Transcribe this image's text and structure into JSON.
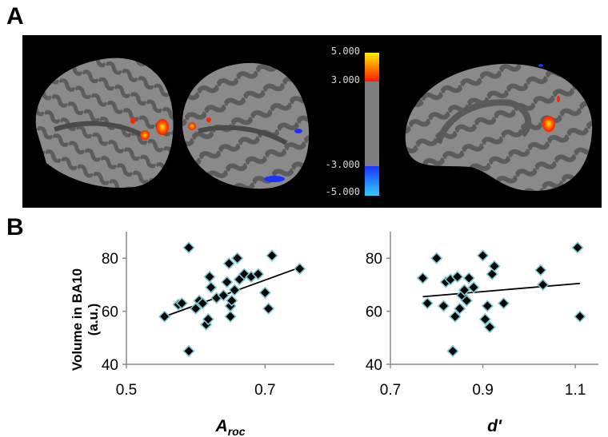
{
  "panel_a": {
    "label": "A",
    "colorbar": {
      "ticks": [
        "5.000",
        "3.000",
        "-3.000",
        "-5.000"
      ],
      "colors": {
        "positive_high": "#ffee00",
        "positive_low": "#ff1a00",
        "neutral": "#7f7f7f",
        "negative_low": "#1a33ff",
        "negative_high": "#33ccff"
      }
    },
    "background": "#000000"
  },
  "panel_b": {
    "label": "B",
    "ylabel_line1": "Volume in BA10",
    "ylabel_line2": "(a.u.)"
  },
  "chart_data": [
    {
      "type": "scatter",
      "xlabel_main": "A",
      "xlabel_sub": "roc",
      "ylabel": "Volume in BA10 (a.u.)",
      "xlim": [
        0.5,
        0.8
      ],
      "ylim": [
        40,
        90
      ],
      "xticks": [
        "0.5",
        "0.7"
      ],
      "yticks": [
        "40",
        "60",
        "80"
      ],
      "trendline": true,
      "trend_start": [
        0.555,
        58
      ],
      "trend_end": [
        0.75,
        76.5
      ],
      "points": [
        [
          0.555,
          58
        ],
        [
          0.575,
          62.5
        ],
        [
          0.58,
          63
        ],
        [
          0.59,
          84
        ],
        [
          0.59,
          45
        ],
        [
          0.6,
          61
        ],
        [
          0.605,
          64
        ],
        [
          0.61,
          63
        ],
        [
          0.615,
          55
        ],
        [
          0.618,
          57
        ],
        [
          0.62,
          73
        ],
        [
          0.622,
          69
        ],
        [
          0.63,
          65
        ],
        [
          0.64,
          66
        ],
        [
          0.645,
          71
        ],
        [
          0.648,
          78
        ],
        [
          0.65,
          58
        ],
        [
          0.65,
          62
        ],
        [
          0.652,
          64
        ],
        [
          0.656,
          68
        ],
        [
          0.66,
          80
        ],
        [
          0.663,
          72
        ],
        [
          0.67,
          74
        ],
        [
          0.68,
          73
        ],
        [
          0.69,
          74
        ],
        [
          0.7,
          67
        ],
        [
          0.705,
          61
        ],
        [
          0.71,
          81
        ],
        [
          0.75,
          76
        ]
      ],
      "marker_color": "#000000",
      "marker_edge": "#7ec8d0"
    },
    {
      "type": "scatter",
      "xlabel_main": "d'",
      "xlabel_sub": "",
      "ylabel": "",
      "xlim": [
        0.7,
        1.15
      ],
      "ylim": [
        40,
        90
      ],
      "xticks": [
        "0.7",
        "0.9",
        "1.1"
      ],
      "yticks": [
        "40",
        "60",
        "80"
      ],
      "trendline": true,
      "trend_start": [
        0.77,
        65.5
      ],
      "trend_end": [
        1.11,
        70.5
      ],
      "points": [
        [
          0.77,
          72.5
        ],
        [
          0.78,
          63
        ],
        [
          0.8,
          80
        ],
        [
          0.815,
          62
        ],
        [
          0.82,
          71
        ],
        [
          0.83,
          72
        ],
        [
          0.835,
          45
        ],
        [
          0.84,
          58
        ],
        [
          0.845,
          73
        ],
        [
          0.85,
          61
        ],
        [
          0.855,
          66
        ],
        [
          0.86,
          68
        ],
        [
          0.865,
          64
        ],
        [
          0.87,
          72.5
        ],
        [
          0.88,
          69
        ],
        [
          0.9,
          81
        ],
        [
          0.905,
          57
        ],
        [
          0.91,
          62
        ],
        [
          0.915,
          54
        ],
        [
          0.92,
          74
        ],
        [
          0.925,
          77
        ],
        [
          0.945,
          63
        ],
        [
          1.025,
          75.5
        ],
        [
          1.03,
          70
        ],
        [
          1.105,
          84
        ],
        [
          1.11,
          58
        ]
      ],
      "marker_color": "#000000",
      "marker_edge": "#7ec8d0"
    }
  ]
}
